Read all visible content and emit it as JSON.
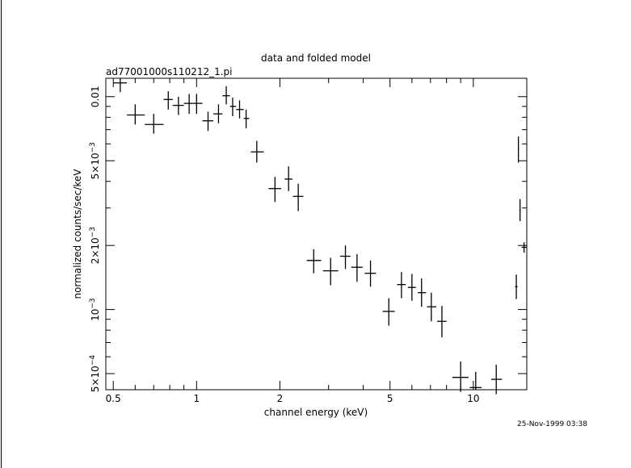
{
  "chart_data": {
    "type": "scatter",
    "title": "data and folded model",
    "subtitle": "ad77001000s110212_1.pi",
    "xlabel": "channel energy (keV)",
    "ylabel": "normalized counts/sec/keV",
    "x_scale": "log",
    "y_scale": "log",
    "xlim": [
      0.47,
      15.6
    ],
    "ylim": [
      0.00042,
      0.0122
    ],
    "grid": false,
    "legend": "none",
    "timestamp": "25-Nov-1999 03:38",
    "x_ticks": [
      {
        "value": 0.5,
        "label": "0.5"
      },
      {
        "value": 1,
        "label": "1"
      },
      {
        "value": 2,
        "label": "2"
      },
      {
        "value": 5,
        "label": "5"
      },
      {
        "value": 10,
        "label": "10"
      }
    ],
    "y_ticks": [
      {
        "value": 0.01,
        "base": "0.01",
        "exp": ""
      },
      {
        "value": 0.005,
        "base": "5×10",
        "exp": "−3"
      },
      {
        "value": 0.002,
        "base": "2×10",
        "exp": "−3"
      },
      {
        "value": 0.001,
        "base": "10",
        "exp": "−3"
      },
      {
        "value": 0.0005,
        "base": "5×10",
        "exp": "−4"
      }
    ],
    "series": [
      {
        "points": [
          {
            "x": 0.53,
            "y": 0.0116,
            "xlo": 0.5,
            "xhi": 0.56,
            "ylo": 0.0105,
            "yhi": 0.0122
          },
          {
            "x": 0.6,
            "y": 0.0082,
            "xlo": 0.56,
            "xhi": 0.65,
            "ylo": 0.0074,
            "yhi": 0.0092
          },
          {
            "x": 0.7,
            "y": 0.0074,
            "xlo": 0.65,
            "xhi": 0.76,
            "ylo": 0.0067,
            "yhi": 0.0083
          },
          {
            "x": 0.79,
            "y": 0.0097,
            "xlo": 0.76,
            "xhi": 0.82,
            "ylo": 0.0087,
            "yhi": 0.0106
          },
          {
            "x": 0.86,
            "y": 0.0091,
            "xlo": 0.82,
            "xhi": 0.9,
            "ylo": 0.0082,
            "yhi": 0.01
          },
          {
            "x": 0.94,
            "y": 0.0093,
            "xlo": 0.9,
            "xhi": 0.97,
            "ylo": 0.0083,
            "yhi": 0.0103
          },
          {
            "x": 1.0,
            "y": 0.0093,
            "xlo": 0.97,
            "xhi": 1.05,
            "ylo": 0.0083,
            "yhi": 0.0103
          },
          {
            "x": 1.1,
            "y": 0.0077,
            "xlo": 1.05,
            "xhi": 1.15,
            "ylo": 0.0069,
            "yhi": 0.0085
          },
          {
            "x": 1.2,
            "y": 0.0083,
            "xlo": 1.15,
            "xhi": 1.24,
            "ylo": 0.0075,
            "yhi": 0.0092
          },
          {
            "x": 1.28,
            "y": 0.0101,
            "xlo": 1.24,
            "xhi": 1.32,
            "ylo": 0.0092,
            "yhi": 0.0112
          },
          {
            "x": 1.35,
            "y": 0.009,
            "xlo": 1.32,
            "xhi": 1.39,
            "ylo": 0.0081,
            "yhi": 0.0099
          },
          {
            "x": 1.43,
            "y": 0.0087,
            "xlo": 1.39,
            "xhi": 1.48,
            "ylo": 0.0079,
            "yhi": 0.0096
          },
          {
            "x": 1.51,
            "y": 0.0079,
            "xlo": 1.48,
            "xhi": 1.55,
            "ylo": 0.0071,
            "yhi": 0.0087
          },
          {
            "x": 1.65,
            "y": 0.0055,
            "xlo": 1.57,
            "xhi": 1.75,
            "ylo": 0.0049,
            "yhi": 0.0062
          },
          {
            "x": 1.92,
            "y": 0.0037,
            "xlo": 1.82,
            "xhi": 2.02,
            "ylo": 0.0032,
            "yhi": 0.0042
          },
          {
            "x": 2.15,
            "y": 0.0041,
            "xlo": 2.08,
            "xhi": 2.22,
            "ylo": 0.0036,
            "yhi": 0.0047
          },
          {
            "x": 2.33,
            "y": 0.0034,
            "xlo": 2.23,
            "xhi": 2.43,
            "ylo": 0.0029,
            "yhi": 0.0039
          },
          {
            "x": 2.65,
            "y": 0.0017,
            "xlo": 2.5,
            "xhi": 2.82,
            "ylo": 0.00148,
            "yhi": 0.00192
          },
          {
            "x": 3.05,
            "y": 0.00152,
            "xlo": 2.86,
            "xhi": 3.25,
            "ylo": 0.0013,
            "yhi": 0.00175
          },
          {
            "x": 3.45,
            "y": 0.00178,
            "xlo": 3.3,
            "xhi": 3.6,
            "ylo": 0.00155,
            "yhi": 0.002
          },
          {
            "x": 3.8,
            "y": 0.00158,
            "xlo": 3.62,
            "xhi": 3.98,
            "ylo": 0.00135,
            "yhi": 0.00182
          },
          {
            "x": 4.25,
            "y": 0.00148,
            "xlo": 4.05,
            "xhi": 4.45,
            "ylo": 0.00128,
            "yhi": 0.0017
          },
          {
            "x": 4.95,
            "y": 0.00098,
            "xlo": 4.7,
            "xhi": 5.2,
            "ylo": 0.00084,
            "yhi": 0.00113
          },
          {
            "x": 5.5,
            "y": 0.00131,
            "xlo": 5.3,
            "xhi": 5.7,
            "ylo": 0.00113,
            "yhi": 0.0015
          },
          {
            "x": 6.0,
            "y": 0.00127,
            "xlo": 5.8,
            "xhi": 6.2,
            "ylo": 0.0011,
            "yhi": 0.00147
          },
          {
            "x": 6.5,
            "y": 0.0012,
            "xlo": 6.3,
            "xhi": 6.75,
            "ylo": 0.00103,
            "yhi": 0.0014
          },
          {
            "x": 7.05,
            "y": 0.00103,
            "xlo": 6.8,
            "xhi": 7.35,
            "ylo": 0.00088,
            "yhi": 0.0012
          },
          {
            "x": 7.7,
            "y": 0.00088,
            "xlo": 7.4,
            "xhi": 8.0,
            "ylo": 0.00074,
            "yhi": 0.00104
          },
          {
            "x": 9.0,
            "y": 0.00048,
            "xlo": 8.4,
            "xhi": 9.6,
            "ylo": 0.00041,
            "yhi": 0.00057
          },
          {
            "x": 10.2,
            "y": 0.00043,
            "xlo": 9.7,
            "xhi": 10.7,
            "ylo": 0.00042,
            "yhi": 0.00051
          },
          {
            "x": 12.1,
            "y": 0.00047,
            "xlo": 11.6,
            "xhi": 12.7,
            "ylo": 0.0004,
            "yhi": 0.00055
          },
          {
            "x": 14.3,
            "y": 0.00128,
            "xlo": 14.15,
            "xhi": 14.45,
            "ylo": 0.00112,
            "yhi": 0.00146
          },
          {
            "x": 14.55,
            "y": 0.0057,
            "xlo": 14.48,
            "xhi": 14.62,
            "ylo": 0.0049,
            "yhi": 0.0065
          },
          {
            "x": 14.75,
            "y": 0.00292,
            "xlo": 14.67,
            "xhi": 14.83,
            "ylo": 0.0026,
            "yhi": 0.0033
          },
          {
            "x": 15.25,
            "y": 0.00196,
            "xlo": 14.95,
            "xhi": 15.55,
            "ylo": 0.00185,
            "yhi": 0.00207
          }
        ]
      }
    ]
  }
}
